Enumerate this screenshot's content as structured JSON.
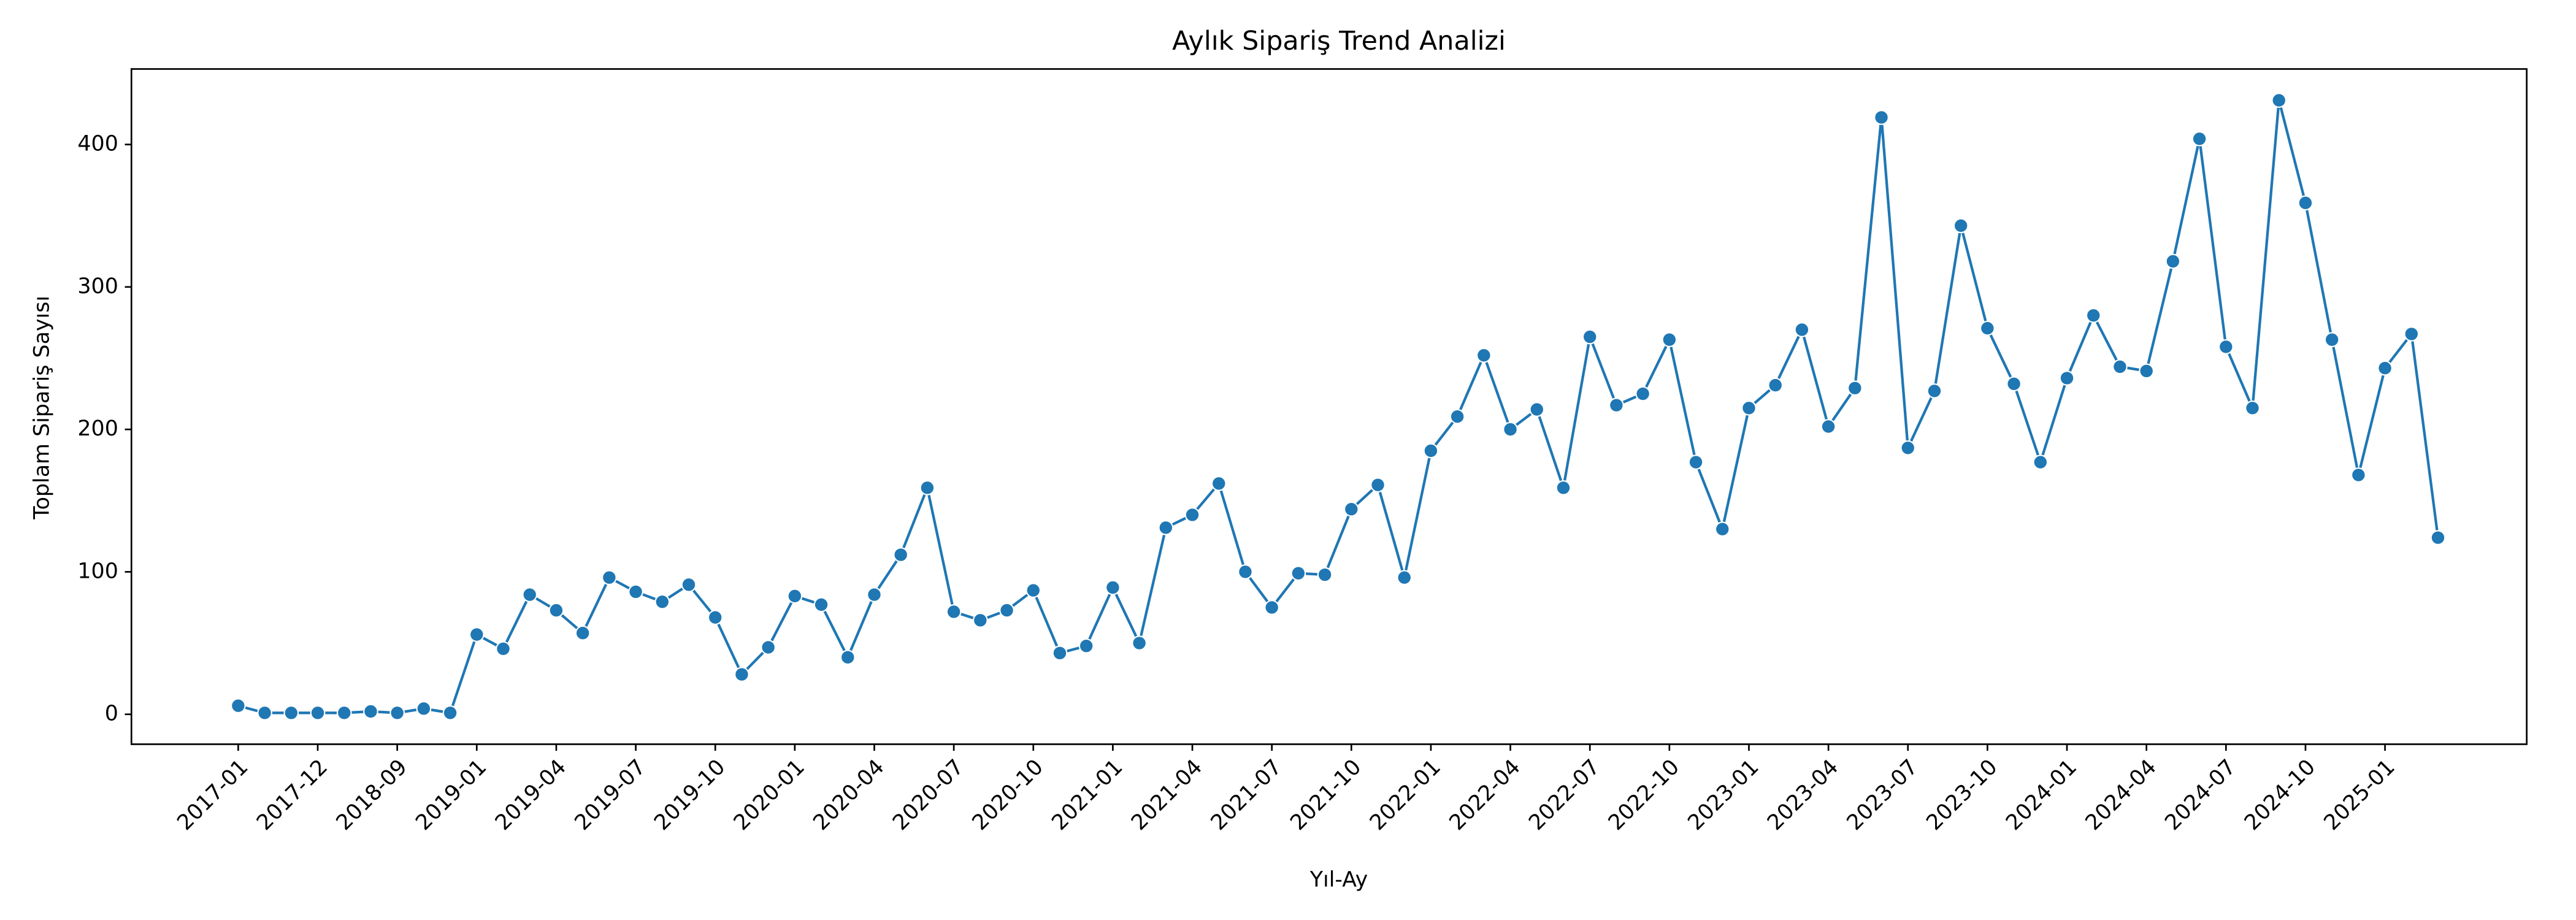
{
  "chart_data": {
    "type": "line",
    "title": "Aylık Sipariş Trend Analizi",
    "x_label": "Yıl-Ay",
    "y_label": "Toplam Sipariş Sayısı",
    "categories": [
      "2017-01",
      null,
      null,
      "2017-12",
      null,
      null,
      "2018-09",
      null,
      null,
      "2019-01",
      null,
      null,
      "2019-04",
      null,
      null,
      "2019-07",
      null,
      null,
      "2019-10",
      null,
      null,
      "2020-01",
      null,
      null,
      "2020-04",
      null,
      null,
      "2020-07",
      null,
      null,
      "2020-10",
      null,
      null,
      "2021-01",
      null,
      null,
      "2021-04",
      null,
      null,
      "2021-07",
      null,
      null,
      "2021-10",
      null,
      null,
      "2022-01",
      null,
      null,
      "2022-04",
      null,
      null,
      "2022-07",
      null,
      null,
      "2022-10",
      null,
      null,
      "2023-01",
      null,
      null,
      "2023-04",
      null,
      null,
      "2023-07",
      null,
      null,
      "2023-10",
      null,
      null,
      "2024-01",
      null,
      null,
      "2024-04",
      null,
      null,
      "2024-07",
      null,
      null,
      "2024-10",
      null,
      null,
      "2025-01",
      null,
      null
    ],
    "series": [
      {
        "name": "Toplam Sipariş Sayısı",
        "color": "#1f77b4",
        "values": [
          6,
          1,
          1,
          1,
          1,
          2,
          1,
          4,
          1,
          56,
          46,
          84,
          73,
          57,
          96,
          86,
          79,
          91,
          68,
          28,
          47,
          83,
          77,
          40,
          84,
          112,
          159,
          72,
          66,
          73,
          87,
          43,
          48,
          89,
          50,
          131,
          140,
          162,
          100,
          75,
          99,
          98,
          144,
          161,
          96,
          185,
          209,
          252,
          200,
          214,
          159,
          265,
          217,
          225,
          263,
          177,
          130,
          215,
          231,
          270,
          202,
          229,
          419,
          187,
          227,
          343,
          271,
          232,
          177,
          236,
          280,
          244,
          241,
          318,
          404,
          258,
          215,
          431,
          359,
          263,
          168,
          243,
          267,
          124
        ]
      }
    ],
    "ylim": [
      -21,
      453
    ],
    "yticks": [
      0,
      100,
      200,
      300,
      400
    ],
    "markers": true,
    "grid": false
  }
}
